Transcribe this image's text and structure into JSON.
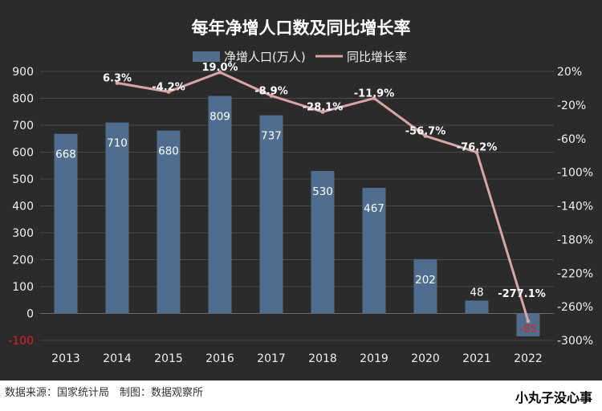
{
  "chart_data": {
    "type": "bar",
    "title": "每年净增人口数及同比增长率",
    "categories": [
      "2013",
      "2014",
      "2015",
      "2016",
      "2017",
      "2018",
      "2019",
      "2020",
      "2021",
      "2022"
    ],
    "series": [
      {
        "name": "净增人口(万人)",
        "type": "bar",
        "axis": "left",
        "color": "#4e6d8f",
        "values": [
          668,
          710,
          680,
          809,
          737,
          530,
          467,
          202,
          48,
          -85
        ],
        "labels": [
          "668",
          "710",
          "680",
          "809",
          "737",
          "530",
          "467",
          "202",
          "48",
          "-85"
        ]
      },
      {
        "name": "同比增长率",
        "type": "line",
        "axis": "right",
        "color": "#d9a4a4",
        "values": [
          null,
          6.3,
          -4.2,
          19.0,
          -8.9,
          -28.1,
          -11.9,
          -56.7,
          -76.2,
          -277.1
        ],
        "labels": [
          "",
          "6.3%",
          "-4.2%",
          "19.0%",
          "-8.9%",
          "-28.1%",
          "-11.9%",
          "-56.7%",
          "-76.2%",
          "-277.1%"
        ]
      }
    ],
    "y_left": {
      "min": -100,
      "max": 900,
      "ticks": [
        "-100",
        "0",
        "100",
        "200",
        "300",
        "400",
        "500",
        "600",
        "700",
        "800",
        "900"
      ]
    },
    "y_right": {
      "min": -300,
      "max": 20,
      "ticks": [
        "20%",
        "-20%",
        "-60%",
        "-100%",
        "-140%",
        "-180%",
        "-220%",
        "-260%",
        "-300%"
      ]
    },
    "legend": "top-center",
    "grid": true
  },
  "footer": {
    "source": "数据来源：国家统计局　制图：数据观察所",
    "watermark": "小丸子没心事"
  }
}
